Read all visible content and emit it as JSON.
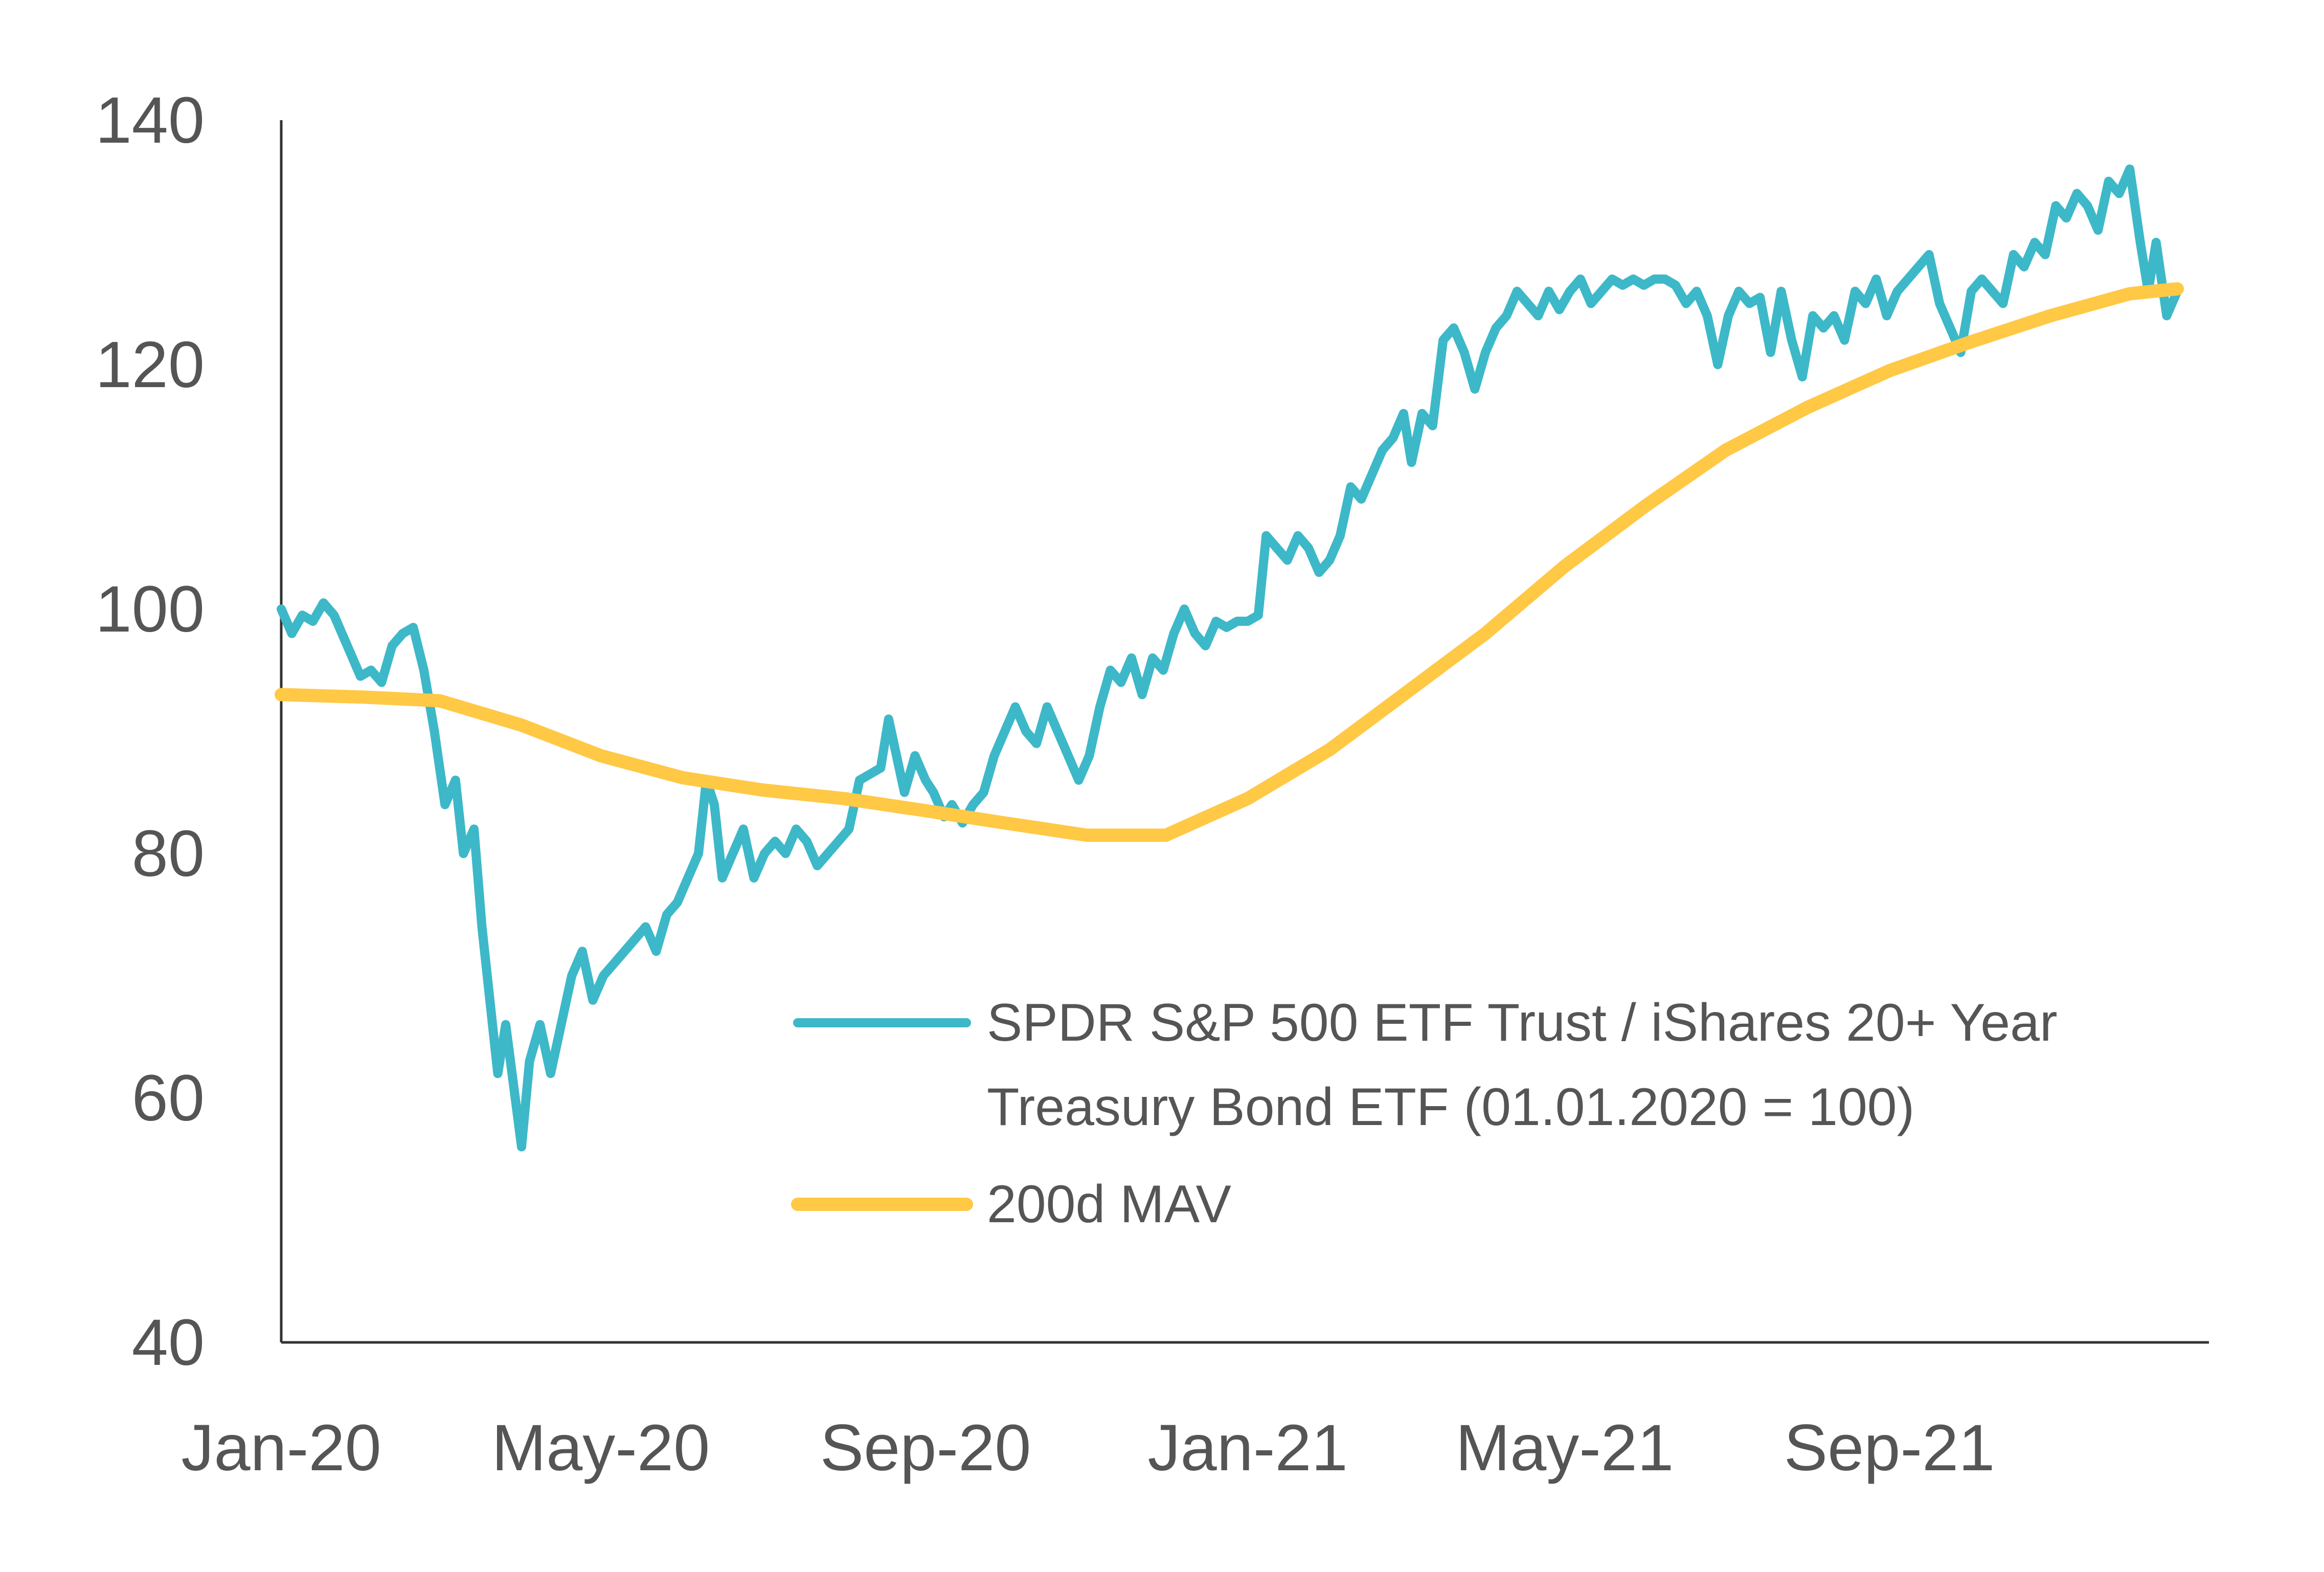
{
  "chart_data": {
    "type": "line",
    "title": "",
    "xlabel": "",
    "ylabel": "",
    "x_ticks": [
      "Jan-20",
      "May-20",
      "Sep-20",
      "Jan-21",
      "May-21",
      "Sep-21"
    ],
    "x_tick_dates": [
      "2020-01-01",
      "2020-05-01",
      "2020-09-01",
      "2021-01-01",
      "2021-05-01",
      "2021-09-01"
    ],
    "xlim": [
      "2020-01-01",
      "2021-12-31"
    ],
    "y_ticks": [
      "40",
      "60",
      "80",
      "100",
      "120",
      "140"
    ],
    "ylim": [
      40,
      140
    ],
    "grid": false,
    "legend_position": "bottom-right",
    "series": [
      {
        "name": "SPDR S&P 500 ETF Trust / iShares 20+ Year Treasury Bond ETF (01.01.2020 = 100)",
        "legend_lines": [
          "SPDR S&P 500 ETF Trust / iShares 20+ Year",
          "Treasury Bond ETF (01.01.2020 = 100)"
        ],
        "color": "#3DB8C8",
        "points": [
          [
            "2020-01-01",
            100
          ],
          [
            "2020-01-05",
            98
          ],
          [
            "2020-01-09",
            99.5
          ],
          [
            "2020-01-13",
            99
          ],
          [
            "2020-01-17",
            100.5
          ],
          [
            "2020-01-21",
            99.5
          ],
          [
            "2020-01-27",
            96.5
          ],
          [
            "2020-01-31",
            94.5
          ],
          [
            "2020-02-04",
            95
          ],
          [
            "2020-02-08",
            94
          ],
          [
            "2020-02-12",
            97
          ],
          [
            "2020-02-16",
            98
          ],
          [
            "2020-02-20",
            98.5
          ],
          [
            "2020-02-24",
            95
          ],
          [
            "2020-02-28",
            90
          ],
          [
            "2020-03-03",
            84
          ],
          [
            "2020-03-07",
            86
          ],
          [
            "2020-03-10",
            80
          ],
          [
            "2020-03-14",
            82
          ],
          [
            "2020-03-17",
            74
          ],
          [
            "2020-03-20",
            68
          ],
          [
            "2020-03-23",
            62
          ],
          [
            "2020-03-26",
            66
          ],
          [
            "2020-03-29",
            61
          ],
          [
            "2020-04-01",
            56
          ],
          [
            "2020-04-04",
            63
          ],
          [
            "2020-04-08",
            66
          ],
          [
            "2020-04-12",
            62
          ],
          [
            "2020-04-16",
            66
          ],
          [
            "2020-04-20",
            70
          ],
          [
            "2020-04-24",
            72
          ],
          [
            "2020-04-28",
            68
          ],
          [
            "2020-05-02",
            70
          ],
          [
            "2020-05-06",
            71
          ],
          [
            "2020-05-10",
            72
          ],
          [
            "2020-05-14",
            73
          ],
          [
            "2020-05-18",
            74
          ],
          [
            "2020-05-22",
            72
          ],
          [
            "2020-05-26",
            75
          ],
          [
            "2020-05-30",
            76
          ],
          [
            "2020-06-03",
            78
          ],
          [
            "2020-06-07",
            80
          ],
          [
            "2020-06-10",
            86
          ],
          [
            "2020-06-13",
            84
          ],
          [
            "2020-06-16",
            78
          ],
          [
            "2020-06-20",
            80
          ],
          [
            "2020-06-24",
            82
          ],
          [
            "2020-06-28",
            78
          ],
          [
            "2020-07-02",
            80
          ],
          [
            "2020-07-06",
            81
          ],
          [
            "2020-07-10",
            80
          ],
          [
            "2020-07-14",
            82
          ],
          [
            "2020-07-18",
            81
          ],
          [
            "2020-07-22",
            79
          ],
          [
            "2020-07-26",
            80
          ],
          [
            "2020-07-30",
            81
          ],
          [
            "2020-08-03",
            82
          ],
          [
            "2020-08-07",
            86
          ],
          [
            "2020-08-11",
            86.5
          ],
          [
            "2020-08-15",
            87
          ],
          [
            "2020-08-18",
            91
          ],
          [
            "2020-08-21",
            88
          ],
          [
            "2020-08-24",
            85
          ],
          [
            "2020-08-28",
            88
          ],
          [
            "2020-09-01",
            86
          ],
          [
            "2020-09-04",
            85
          ],
          [
            "2020-09-08",
            83
          ],
          [
            "2020-09-11",
            84
          ],
          [
            "2020-09-15",
            82.5
          ],
          [
            "2020-09-19",
            84
          ],
          [
            "2020-09-23",
            85
          ],
          [
            "2020-09-27",
            88
          ],
          [
            "2020-10-01",
            90
          ],
          [
            "2020-10-05",
            92
          ],
          [
            "2020-10-09",
            90
          ],
          [
            "2020-10-13",
            89
          ],
          [
            "2020-10-17",
            92
          ],
          [
            "2020-10-21",
            90
          ],
          [
            "2020-10-25",
            88
          ],
          [
            "2020-10-29",
            86
          ],
          [
            "2020-11-02",
            88
          ],
          [
            "2020-11-06",
            92
          ],
          [
            "2020-11-10",
            95
          ],
          [
            "2020-11-14",
            94
          ],
          [
            "2020-11-18",
            96
          ],
          [
            "2020-11-22",
            93
          ],
          [
            "2020-11-26",
            96
          ],
          [
            "2020-11-30",
            95
          ],
          [
            "2020-12-04",
            98
          ],
          [
            "2020-12-08",
            100
          ],
          [
            "2020-12-12",
            98
          ],
          [
            "2020-12-16",
            97
          ],
          [
            "2020-12-20",
            99
          ],
          [
            "2020-12-24",
            98.5
          ],
          [
            "2020-12-28",
            99
          ],
          [
            "2021-01-01",
            99
          ],
          [
            "2021-01-05",
            99.5
          ],
          [
            "2021-01-08",
            106
          ],
          [
            "2021-01-12",
            105
          ],
          [
            "2021-01-16",
            104
          ],
          [
            "2021-01-20",
            106
          ],
          [
            "2021-01-24",
            105
          ],
          [
            "2021-01-28",
            103
          ],
          [
            "2021-02-01",
            104
          ],
          [
            "2021-02-05",
            106
          ],
          [
            "2021-02-09",
            110
          ],
          [
            "2021-02-13",
            109
          ],
          [
            "2021-02-17",
            111
          ],
          [
            "2021-02-21",
            113
          ],
          [
            "2021-02-25",
            114
          ],
          [
            "2021-03-01",
            116
          ],
          [
            "2021-03-04",
            112
          ],
          [
            "2021-03-08",
            116
          ],
          [
            "2021-03-12",
            115
          ],
          [
            "2021-03-16",
            122
          ],
          [
            "2021-03-20",
            123
          ],
          [
            "2021-03-24",
            121
          ],
          [
            "2021-03-28",
            118
          ],
          [
            "2021-04-01",
            121
          ],
          [
            "2021-04-05",
            123
          ],
          [
            "2021-04-09",
            124
          ],
          [
            "2021-04-13",
            126
          ],
          [
            "2021-04-17",
            125
          ],
          [
            "2021-04-21",
            124
          ],
          [
            "2021-04-25",
            126
          ],
          [
            "2021-04-29",
            124.5
          ],
          [
            "2021-05-03",
            126
          ],
          [
            "2021-05-07",
            127
          ],
          [
            "2021-05-11",
            125
          ],
          [
            "2021-05-15",
            126
          ],
          [
            "2021-05-19",
            127
          ],
          [
            "2021-05-23",
            126.5
          ],
          [
            "2021-05-27",
            127
          ],
          [
            "2021-05-31",
            126.5
          ],
          [
            "2021-06-04",
            127
          ],
          [
            "2021-06-08",
            127
          ],
          [
            "2021-06-12",
            126.5
          ],
          [
            "2021-06-16",
            125
          ],
          [
            "2021-06-20",
            126
          ],
          [
            "2021-06-24",
            124
          ],
          [
            "2021-06-28",
            120
          ],
          [
            "2021-07-02",
            124
          ],
          [
            "2021-07-06",
            126
          ],
          [
            "2021-07-10",
            125
          ],
          [
            "2021-07-14",
            125.5
          ],
          [
            "2021-07-18",
            121
          ],
          [
            "2021-07-22",
            126
          ],
          [
            "2021-07-26",
            122
          ],
          [
            "2021-07-30",
            119
          ],
          [
            "2021-08-03",
            124
          ],
          [
            "2021-08-07",
            123
          ],
          [
            "2021-08-11",
            124
          ],
          [
            "2021-08-15",
            122
          ],
          [
            "2021-08-19",
            126
          ],
          [
            "2021-08-23",
            125
          ],
          [
            "2021-08-27",
            127
          ],
          [
            "2021-08-31",
            124
          ],
          [
            "2021-09-04",
            126
          ],
          [
            "2021-09-08",
            127
          ],
          [
            "2021-09-12",
            128
          ],
          [
            "2021-09-16",
            129
          ],
          [
            "2021-09-20",
            125
          ],
          [
            "2021-09-24",
            123
          ],
          [
            "2021-09-28",
            121
          ],
          [
            "2021-10-02",
            126
          ],
          [
            "2021-10-06",
            127
          ],
          [
            "2021-10-10",
            126
          ],
          [
            "2021-10-14",
            125
          ],
          [
            "2021-10-18",
            129
          ],
          [
            "2021-10-22",
            128
          ],
          [
            "2021-10-26",
            130
          ],
          [
            "2021-10-30",
            129
          ],
          [
            "2021-11-03",
            133
          ],
          [
            "2021-11-07",
            132
          ],
          [
            "2021-11-11",
            134
          ],
          [
            "2021-11-15",
            133
          ],
          [
            "2021-11-19",
            131
          ],
          [
            "2021-11-23",
            135
          ],
          [
            "2021-11-27",
            134
          ],
          [
            "2021-12-01",
            136
          ],
          [
            "2021-12-05",
            130
          ],
          [
            "2021-12-08",
            126
          ],
          [
            "2021-12-11",
            130
          ],
          [
            "2021-12-15",
            124
          ],
          [
            "2021-12-19",
            126
          ]
        ]
      },
      {
        "name": "200d MAV",
        "legend_lines": [
          "200d MAV"
        ],
        "color": "#FFC845",
        "points": [
          [
            "2020-01-01",
            93
          ],
          [
            "2020-02-01",
            92.8
          ],
          [
            "2020-03-01",
            92.5
          ],
          [
            "2020-04-01",
            90.5
          ],
          [
            "2020-05-01",
            88
          ],
          [
            "2020-06-01",
            86.2
          ],
          [
            "2020-07-01",
            85.2
          ],
          [
            "2020-08-01",
            84.5
          ],
          [
            "2020-09-01",
            83.5
          ],
          [
            "2020-10-01",
            82.5
          ],
          [
            "2020-11-01",
            81.5
          ],
          [
            "2020-12-01",
            81.5
          ],
          [
            "2021-01-01",
            84.5
          ],
          [
            "2021-02-01",
            88.5
          ],
          [
            "2021-03-01",
            93
          ],
          [
            "2021-04-01",
            98
          ],
          [
            "2021-05-01",
            103.5
          ],
          [
            "2021-06-01",
            108.5
          ],
          [
            "2021-07-01",
            113
          ],
          [
            "2021-08-01",
            116.5
          ],
          [
            "2021-09-01",
            119.5
          ],
          [
            "2021-10-01",
            121.8
          ],
          [
            "2021-11-01",
            124
          ],
          [
            "2021-12-01",
            125.8
          ],
          [
            "2021-12-19",
            126.2
          ]
        ]
      }
    ]
  }
}
